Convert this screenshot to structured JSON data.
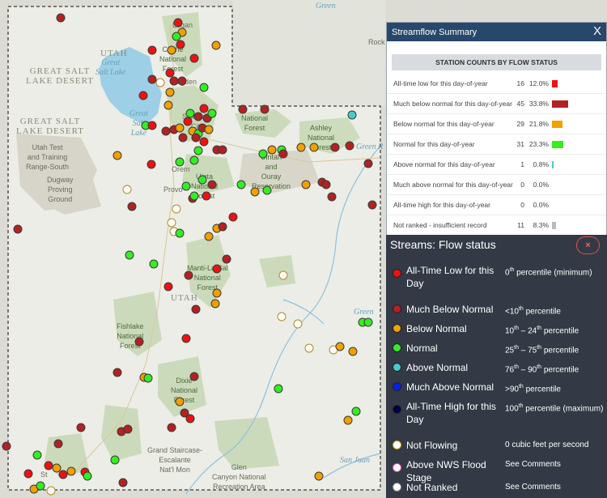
{
  "map": {
    "labels": {
      "utah_north": "UTAH",
      "great_salt_lake": "Great\nSalt Lake",
      "great_salt_lake_lower": "Great\nSalt\nLake",
      "desert_1": "GREAT SALT\nLAKE DESERT",
      "desert_2": "GREAT SALT\nLAKE DESERT",
      "utah_test": "Utah Test\nand Training\nRange-South",
      "dugway": "Dugway\nProving\nGround",
      "logan": "Logan",
      "cache": "Cache\nNational\nForest",
      "ogden": "Ogden",
      "salt_lake": "Salt Lake\nCity",
      "forest_1": "National\nForest",
      "ashley": "Ashley\nNational\nForest",
      "uintah": "Uintah\nand\nOuray\nReservation",
      "uinta": "Uinta\nNational\nForest",
      "orem": "Orem",
      "provo": "Provo",
      "manti": "Manti-La Sal\nNational\nForest",
      "utah_south": "UTAH",
      "fishlake": "Fishlake\nNational\nForest",
      "dixie": "Dixie\nNational\nForest",
      "grand_staircase": "Grand Staircase-\nEscalante\nNat'l Mon",
      "glen_canyon": "Glen\nCanyon National\nRecreation Area",
      "green_r": "Green R",
      "green": "Green",
      "san_juan": "San Juan",
      "st_george": "St",
      "rock": "Rock",
      "green_corner": "Green"
    }
  },
  "summary": {
    "title": "Streamflow Summary",
    "close": "X",
    "table_header": "STATION COUNTS BY FLOW STATUS",
    "rows": [
      {
        "label": "All-time low for this day-of-year",
        "count": "16",
        "pct": "12.0%",
        "color": "#ee1111",
        "fraction": 0.12
      },
      {
        "label": "Much below normal for this day-of-year",
        "count": "45",
        "pct": "33.8%",
        "color": "#b22222",
        "fraction": 0.338
      },
      {
        "label": "Below normal for this day-of-year",
        "count": "29",
        "pct": "21.8%",
        "color": "#f0a000",
        "fraction": 0.218
      },
      {
        "label": "Normal for this day-of-year",
        "count": "31",
        "pct": "23.3%",
        "color": "#33ee22",
        "fraction": 0.233
      },
      {
        "label": "Above normal for this day-of-year",
        "count": "1",
        "pct": "0.8%",
        "color": "#44cccc",
        "fraction": 0.008
      },
      {
        "label": "Much above normal for this day-of-year",
        "count": "0",
        "pct": "0.0%",
        "color": "#0000ff",
        "fraction": 0.0
      },
      {
        "label": "All-time high for this day-of-year",
        "count": "0",
        "pct": "0.0%",
        "color": "#000055",
        "fraction": 0.0
      },
      {
        "label": "Not ranked - insufficient record",
        "count": "11",
        "pct": "8.3%",
        "color": "#bbbbbb",
        "fraction": 0.083
      }
    ]
  },
  "legend": {
    "title": "Streams: Flow status",
    "close": "×",
    "items": [
      {
        "name": "All-Time Low for this Day",
        "desc_num": "0",
        "desc_sup": "th",
        "desc_rest": " percentile (minimum)",
        "fill": "#ee1111",
        "border": "#222"
      },
      {
        "name": "Much Below Normal",
        "desc_num": "<10",
        "desc_sup": "th",
        "desc_rest": " percentile",
        "fill": "#b22222",
        "border": "#222"
      },
      {
        "name": "Below Normal",
        "desc_num": "10",
        "desc_sup": "th",
        "desc_rest": " – 24",
        "desc_sup2": "th",
        "desc_rest2": " percentile",
        "fill": "#f0a000",
        "border": "#222"
      },
      {
        "name": "Normal",
        "desc_num": "25",
        "desc_sup": "th",
        "desc_rest": " – 75",
        "desc_sup2": "th",
        "desc_rest2": " percentile",
        "fill": "#33ee22",
        "border": "#222"
      },
      {
        "name": "Above Normal",
        "desc_num": "76",
        "desc_sup": "th",
        "desc_rest": " – 90",
        "desc_sup2": "th",
        "desc_rest2": " percentile",
        "fill": "#44cccc",
        "border": "#222"
      },
      {
        "name": "Much Above Normal",
        "desc_num": ">90",
        "desc_sup": "th",
        "desc_rest": " percentile",
        "fill": "#0022ee",
        "border": "#222"
      },
      {
        "name": "All-Time High for this Day",
        "desc_num": "100",
        "desc_sup": "th",
        "desc_rest": " percentile (maximum)",
        "fill": "#000044",
        "border": "#222"
      },
      {
        "name": "Not Flowing",
        "desc_num": "0 cubic feet per second",
        "desc_sup": "",
        "desc_rest": "",
        "fill": "#ffffff",
        "border": "#c8a020"
      },
      {
        "name": "Above NWS Flood Stage",
        "desc_num": "See Comments",
        "desc_sup": "",
        "desc_rest": "",
        "fill": "#ffffff",
        "border": "#ee44aa"
      },
      {
        "name": "Not Ranked",
        "desc_num": "See Comments",
        "desc_sup": "",
        "desc_rest": "",
        "fill": "#ffffff",
        "border": "#888888"
      }
    ]
  },
  "colors": {
    "low": "#ee1111",
    "much_below": "#b22222",
    "below": "#f0a000",
    "normal": "#33ee22",
    "above": "#44cccc",
    "not_flowing": "#ffffff",
    "not_ranked": "#ffffff"
  }
}
